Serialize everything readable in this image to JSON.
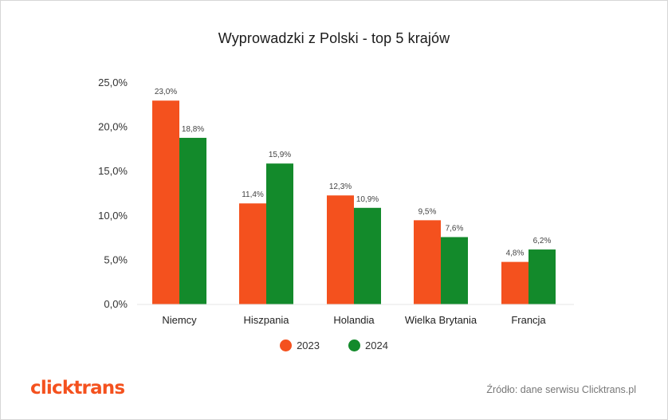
{
  "brand": {
    "logo_text": "clicktrans",
    "logo_color": "#F4511E"
  },
  "source_note": "Źródło: dane serwisu Clicktrans.pl",
  "colors": {
    "series_2023": "#F4511E",
    "series_2024": "#138A2B",
    "text": "#1a1a1a"
  },
  "chart_data": {
    "type": "bar",
    "title": "Wyprowadzki z Polski - top 5 krajów",
    "xlabel": "",
    "ylabel": "",
    "categories": [
      "Niemcy",
      "Hiszpania",
      "Holandia",
      "Wielka Brytania",
      "Francja"
    ],
    "series": [
      {
        "name": "2023",
        "values": [
          23.0,
          11.4,
          12.3,
          9.5,
          4.8
        ],
        "labels": [
          "23,0%",
          "11,4%",
          "12,3%",
          "9,5%",
          "4,8%"
        ]
      },
      {
        "name": "2024",
        "values": [
          18.8,
          15.9,
          10.9,
          7.6,
          6.2
        ],
        "labels": [
          "18,8%",
          "15,9%",
          "10,9%",
          "7,6%",
          "6,2%"
        ]
      }
    ],
    "ylim": [
      0,
      25
    ],
    "yticks": [
      0,
      5,
      10,
      15,
      20,
      25
    ],
    "ytick_labels": [
      "0,0%",
      "5,0%",
      "10,0%",
      "15,0%",
      "20,0%",
      "25,0%"
    ],
    "grid": false,
    "legend_position": "bottom-center"
  }
}
